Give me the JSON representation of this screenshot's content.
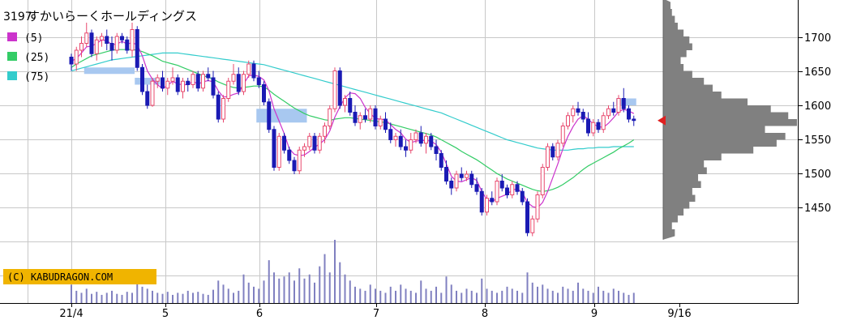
{
  "header": {
    "ticker_code": "3197",
    "company_name": "すかいらーくホールディングス"
  },
  "legend": [
    {
      "label": "(5)",
      "color": "#cc33cc"
    },
    {
      "label": "(25)",
      "color": "#33cc66"
    },
    {
      "label": "(75)",
      "color": "#33cccc"
    }
  ],
  "copyright": "(C) KABUDRAGON.COM",
  "colors": {
    "up_candle": "#e8486e",
    "down_candle": "#1a1ab4",
    "ma5": "#cc33cc",
    "ma25": "#33cc66",
    "ma75": "#33cccc",
    "volume": "#8080c0",
    "volume_profile": "#808080",
    "current_marker": "#e02020",
    "highlight_box": "#a8c8f0",
    "copyright_bg": "#f0b400",
    "grid": "#c8c8c8"
  },
  "chart_data": {
    "type": "candlestick",
    "x_tick_labels": [
      "21/4",
      "5",
      "6",
      "7",
      "8",
      "9",
      "9/16"
    ],
    "y_tick_labels": [
      "1700",
      "1650",
      "1600",
      "1550",
      "1500",
      "1450"
    ],
    "ylim": [
      1400,
      1750
    ],
    "current_price": 1578,
    "candles": [
      [
        1670,
        1675,
        1650,
        1660
      ],
      [
        1660,
        1685,
        1650,
        1680
      ],
      [
        1680,
        1700,
        1670,
        1690
      ],
      [
        1690,
        1720,
        1685,
        1705
      ],
      [
        1705,
        1710,
        1670,
        1675
      ],
      [
        1675,
        1700,
        1665,
        1695
      ],
      [
        1695,
        1705,
        1685,
        1700
      ],
      [
        1700,
        1710,
        1680,
        1690
      ],
      [
        1690,
        1700,
        1665,
        1680
      ],
      [
        1680,
        1705,
        1675,
        1700
      ],
      [
        1700,
        1705,
        1690,
        1695
      ],
      [
        1695,
        1700,
        1675,
        1680
      ],
      [
        1680,
        1720,
        1670,
        1710
      ],
      [
        1710,
        1715,
        1650,
        1655
      ],
      [
        1655,
        1660,
        1615,
        1620
      ],
      [
        1620,
        1630,
        1595,
        1600
      ],
      [
        1600,
        1640,
        1598,
        1635
      ],
      [
        1635,
        1645,
        1625,
        1640
      ],
      [
        1640,
        1650,
        1620,
        1625
      ],
      [
        1625,
        1640,
        1615,
        1635
      ],
      [
        1635,
        1655,
        1630,
        1640
      ],
      [
        1640,
        1645,
        1615,
        1620
      ],
      [
        1620,
        1640,
        1610,
        1635
      ],
      [
        1635,
        1640,
        1620,
        1630
      ],
      [
        1630,
        1650,
        1625,
        1645
      ],
      [
        1645,
        1650,
        1620,
        1625
      ],
      [
        1625,
        1650,
        1620,
        1645
      ],
      [
        1645,
        1655,
        1635,
        1640
      ],
      [
        1640,
        1650,
        1610,
        1615
      ],
      [
        1615,
        1620,
        1575,
        1580
      ],
      [
        1580,
        1615,
        1575,
        1610
      ],
      [
        1610,
        1640,
        1605,
        1635
      ],
      [
        1635,
        1660,
        1630,
        1645
      ],
      [
        1645,
        1655,
        1615,
        1620
      ],
      [
        1620,
        1650,
        1615,
        1645
      ],
      [
        1645,
        1665,
        1640,
        1660
      ],
      [
        1660,
        1665,
        1635,
        1640
      ],
      [
        1640,
        1650,
        1625,
        1630
      ],
      [
        1630,
        1635,
        1600,
        1605
      ],
      [
        1605,
        1610,
        1560,
        1565
      ],
      [
        1565,
        1570,
        1505,
        1510
      ],
      [
        1510,
        1560,
        1505,
        1555
      ],
      [
        1555,
        1560,
        1530,
        1535
      ],
      [
        1535,
        1540,
        1515,
        1520
      ],
      [
        1520,
        1525,
        1500,
        1505
      ],
      [
        1505,
        1540,
        1500,
        1535
      ],
      [
        1535,
        1545,
        1525,
        1540
      ],
      [
        1540,
        1560,
        1535,
        1555
      ],
      [
        1555,
        1560,
        1530,
        1535
      ],
      [
        1535,
        1560,
        1530,
        1555
      ],
      [
        1555,
        1575,
        1545,
        1570
      ],
      [
        1570,
        1600,
        1565,
        1595
      ],
      [
        1595,
        1655,
        1590,
        1650
      ],
      [
        1650,
        1655,
        1595,
        1600
      ],
      [
        1600,
        1615,
        1590,
        1610
      ],
      [
        1610,
        1620,
        1585,
        1590
      ],
      [
        1590,
        1600,
        1570,
        1575
      ],
      [
        1575,
        1590,
        1565,
        1585
      ],
      [
        1585,
        1595,
        1575,
        1580
      ],
      [
        1580,
        1600,
        1575,
        1595
      ],
      [
        1595,
        1600,
        1565,
        1570
      ],
      [
        1570,
        1585,
        1565,
        1580
      ],
      [
        1580,
        1590,
        1560,
        1565
      ],
      [
        1565,
        1575,
        1545,
        1550
      ],
      [
        1550,
        1560,
        1540,
        1555
      ],
      [
        1555,
        1565,
        1535,
        1540
      ],
      [
        1540,
        1550,
        1525,
        1535
      ],
      [
        1535,
        1560,
        1530,
        1550
      ],
      [
        1550,
        1565,
        1545,
        1560
      ],
      [
        1560,
        1570,
        1540,
        1545
      ],
      [
        1545,
        1560,
        1530,
        1555
      ],
      [
        1555,
        1560,
        1535,
        1540
      ],
      [
        1540,
        1550,
        1520,
        1530
      ],
      [
        1530,
        1535,
        1505,
        1510
      ],
      [
        1510,
        1520,
        1485,
        1490
      ],
      [
        1490,
        1495,
        1470,
        1480
      ],
      [
        1480,
        1505,
        1475,
        1500
      ],
      [
        1500,
        1510,
        1490,
        1495
      ],
      [
        1495,
        1505,
        1490,
        1500
      ],
      [
        1500,
        1505,
        1480,
        1485
      ],
      [
        1485,
        1495,
        1470,
        1475
      ],
      [
        1475,
        1480,
        1440,
        1445
      ],
      [
        1445,
        1470,
        1440,
        1465
      ],
      [
        1465,
        1475,
        1455,
        1460
      ],
      [
        1460,
        1495,
        1455,
        1490
      ],
      [
        1490,
        1500,
        1475,
        1480
      ],
      [
        1480,
        1485,
        1465,
        1470
      ],
      [
        1470,
        1490,
        1465,
        1485
      ],
      [
        1485,
        1490,
        1470,
        1475
      ],
      [
        1475,
        1480,
        1455,
        1460
      ],
      [
        1460,
        1465,
        1410,
        1415
      ],
      [
        1415,
        1440,
        1410,
        1435
      ],
      [
        1435,
        1475,
        1430,
        1470
      ],
      [
        1470,
        1515,
        1465,
        1510
      ],
      [
        1510,
        1545,
        1505,
        1540
      ],
      [
        1540,
        1545,
        1520,
        1525
      ],
      [
        1525,
        1550,
        1520,
        1545
      ],
      [
        1545,
        1575,
        1540,
        1570
      ],
      [
        1570,
        1590,
        1565,
        1585
      ],
      [
        1585,
        1600,
        1575,
        1595
      ],
      [
        1595,
        1605,
        1585,
        1590
      ],
      [
        1590,
        1595,
        1575,
        1580
      ],
      [
        1580,
        1590,
        1555,
        1560
      ],
      [
        1560,
        1580,
        1555,
        1575
      ],
      [
        1575,
        1580,
        1560,
        1565
      ],
      [
        1565,
        1590,
        1560,
        1585
      ],
      [
        1585,
        1600,
        1580,
        1595
      ],
      [
        1595,
        1605,
        1585,
        1590
      ],
      [
        1590,
        1615,
        1585,
        1610
      ],
      [
        1610,
        1625,
        1590,
        1595
      ],
      [
        1595,
        1600,
        1575,
        1580
      ],
      [
        1580,
        1585,
        1570,
        1578
      ]
    ],
    "ma5": [
      1664,
      1668,
      1676,
      1685,
      1686,
      1690,
      1695,
      1694,
      1688,
      1689,
      1693,
      1689,
      1691,
      1688,
      1672,
      1650,
      1638,
      1630,
      1624,
      1629,
      1635,
      1631,
      1630,
      1630,
      1635,
      1631,
      1634,
      1636,
      1634,
      1621,
      1612,
      1613,
      1616,
      1618,
      1631,
      1643,
      1644,
      1642,
      1637,
      1621,
      1595,
      1577,
      1559,
      1537,
      1529,
      1527,
      1528,
      1533,
      1539,
      1544,
      1550,
      1563,
      1583,
      1598,
      1611,
      1618,
      1617,
      1610,
      1597,
      1588,
      1581,
      1580,
      1579,
      1572,
      1565,
      1560,
      1551,
      1546,
      1548,
      1549,
      1549,
      1548,
      1543,
      1532,
      1515,
      1497,
      1490,
      1489,
      1492,
      1495,
      1491,
      1475,
      1463,
      1460,
      1465,
      1468,
      1471,
      1477,
      1479,
      1473,
      1459,
      1453,
      1451,
      1459,
      1475,
      1495,
      1515,
      1537,
      1555,
      1569,
      1580,
      1585,
      1580,
      1573,
      1569,
      1568,
      1574,
      1582,
      1591,
      1594,
      1592,
      1588
    ],
    "ma25": [
      1655,
      1660,
      1664,
      1668,
      1672,
      1674,
      1676,
      1678,
      1680,
      1681,
      1681,
      1681,
      1681,
      1680,
      1678,
      1675,
      1672,
      1668,
      1664,
      1662,
      1660,
      1658,
      1655,
      1652,
      1649,
      1646,
      1643,
      1641,
      1638,
      1634,
      1631,
      1628,
      1626,
      1625,
      1626,
      1627,
      1628,
      1628,
      1627,
      1622,
      1616,
      1611,
      1606,
      1601,
      1596,
      1592,
      1588,
      1585,
      1583,
      1581,
      1579,
      1578,
      1580,
      1581,
      1582,
      1582,
      1581,
      1580,
      1579,
      1578,
      1577,
      1576,
      1575,
      1573,
      1571,
      1569,
      1567,
      1565,
      1563,
      1561,
      1559,
      1557,
      1554,
      1550,
      1546,
      1542,
      1538,
      1533,
      1529,
      1525,
      1521,
      1516,
      1511,
      1506,
      1501,
      1497,
      1493,
      1490,
      1487,
      1484,
      1481,
      1478,
      1476,
      1475,
      1476,
      1478,
      1481,
      1485,
      1490,
      1495,
      1501,
      1507,
      1512,
      1516,
      1520,
      1524,
      1528,
      1532,
      1537,
      1541,
      1545,
      1550
    ],
    "ma75": [
      1650,
      1652,
      1654,
      1656,
      1658,
      1660,
      1662,
      1664,
      1666,
      1667,
      1668,
      1669,
      1670,
      1671,
      1672,
      1673,
      1674,
      1675,
      1676,
      1676,
      1676,
      1676,
      1675,
      1674,
      1673,
      1672,
      1671,
      1670,
      1669,
      1668,
      1667,
      1666,
      1665,
      1664,
      1663,
      1662,
      1661,
      1660,
      1659,
      1657,
      1655,
      1653,
      1651,
      1649,
      1647,
      1645,
      1643,
      1641,
      1639,
      1637,
      1635,
      1633,
      1631,
      1629,
      1627,
      1625,
      1623,
      1621,
      1619,
      1617,
      1615,
      1613,
      1611,
      1609,
      1607,
      1605,
      1603,
      1601,
      1599,
      1597,
      1595,
      1593,
      1591,
      1589,
      1586,
      1583,
      1580,
      1577,
      1574,
      1571,
      1568,
      1565,
      1562,
      1559,
      1556,
      1553,
      1550,
      1548,
      1546,
      1544,
      1542,
      1540,
      1538,
      1537,
      1536,
      1535,
      1535,
      1535,
      1535,
      1536,
      1537,
      1537,
      1538,
      1538,
      1539,
      1539,
      1539,
      1540,
      1540,
      1540,
      1540,
      1540
    ],
    "volume": [
      18,
      12,
      10,
      14,
      9,
      11,
      8,
      10,
      12,
      9,
      8,
      11,
      10,
      20,
      16,
      14,
      12,
      10,
      9,
      11,
      8,
      10,
      9,
      12,
      10,
      11,
      9,
      8,
      13,
      22,
      18,
      14,
      10,
      12,
      28,
      20,
      16,
      14,
      22,
      42,
      30,
      24,
      26,
      30,
      22,
      34,
      24,
      28,
      20,
      36,
      48,
      30,
      62,
      40,
      28,
      22,
      16,
      14,
      12,
      18,
      14,
      12,
      10,
      16,
      12,
      18,
      14,
      12,
      10,
      22,
      14,
      12,
      16,
      10,
      26,
      18,
      12,
      10,
      14,
      12,
      10,
      24,
      14,
      12,
      10,
      12,
      16,
      14,
      12,
      10,
      30,
      20,
      16,
      18,
      14,
      12,
      10,
      16,
      14,
      12,
      20,
      14,
      12,
      10,
      16,
      12,
      10,
      14,
      12,
      10,
      8,
      10
    ],
    "volume_profile": [
      [
        1415,
        8
      ],
      [
        1425,
        6
      ],
      [
        1435,
        10
      ],
      [
        1445,
        14
      ],
      [
        1455,
        18
      ],
      [
        1465,
        22
      ],
      [
        1475,
        20
      ],
      [
        1485,
        26
      ],
      [
        1495,
        24
      ],
      [
        1505,
        30
      ],
      [
        1515,
        28
      ],
      [
        1525,
        40
      ],
      [
        1535,
        62
      ],
      [
        1545,
        78
      ],
      [
        1555,
        84
      ],
      [
        1565,
        70
      ],
      [
        1575,
        92
      ],
      [
        1585,
        86
      ],
      [
        1595,
        74
      ],
      [
        1605,
        58
      ],
      [
        1615,
        40
      ],
      [
        1625,
        34
      ],
      [
        1635,
        28
      ],
      [
        1645,
        20
      ],
      [
        1655,
        14
      ],
      [
        1665,
        12
      ],
      [
        1675,
        16
      ],
      [
        1685,
        20
      ],
      [
        1695,
        18
      ],
      [
        1705,
        14
      ],
      [
        1715,
        10
      ],
      [
        1725,
        8
      ],
      [
        1735,
        6
      ],
      [
        1745,
        5
      ]
    ],
    "highlight_boxes": [
      {
        "start": 3,
        "end": 12,
        "low": 1650,
        "high": 1655
      },
      {
        "start": 13,
        "end": 17,
        "low": 1630,
        "high": 1640
      },
      {
        "start": 37,
        "end": 46,
        "low": 1575,
        "high": 1595
      },
      {
        "start": 108,
        "end": 111,
        "low": 1600,
        "high": 1610
      }
    ]
  }
}
